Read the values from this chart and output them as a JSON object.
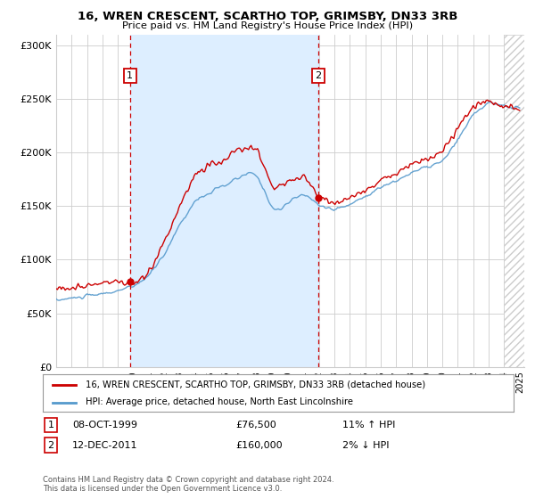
{
  "title": "16, WREN CRESCENT, SCARTHO TOP, GRIMSBY, DN33 3RB",
  "subtitle": "Price paid vs. HM Land Registry's House Price Index (HPI)",
  "ylim": [
    0,
    310000
  ],
  "yticks": [
    0,
    50000,
    100000,
    150000,
    200000,
    250000,
    300000
  ],
  "ytick_labels": [
    "£0",
    "£50K",
    "£100K",
    "£150K",
    "£200K",
    "£250K",
    "£300K"
  ],
  "legend_line1": "16, WREN CRESCENT, SCARTHO TOP, GRIMSBY, DN33 3RB (detached house)",
  "legend_line2": "HPI: Average price, detached house, North East Lincolnshire",
  "sale1_label": "1",
  "sale1_date": "08-OCT-1999",
  "sale1_price": "£76,500",
  "sale1_hpi": "11% ↑ HPI",
  "sale1_x": 1999.78,
  "sale2_label": "2",
  "sale2_date": "12-DEC-2011",
  "sale2_price": "£160,000",
  "sale2_hpi": "2% ↓ HPI",
  "sale2_x": 2011.95,
  "footer": "Contains HM Land Registry data © Crown copyright and database right 2024.\nThis data is licensed under the Open Government Licence v3.0.",
  "red_color": "#cc0000",
  "blue_color": "#5599cc",
  "shade_color": "#ddeeff",
  "vline_color": "#cc0000",
  "background_color": "#ffffff",
  "grid_color": "#cccccc",
  "xlim_start": 1995,
  "xlim_end": 2025.3
}
